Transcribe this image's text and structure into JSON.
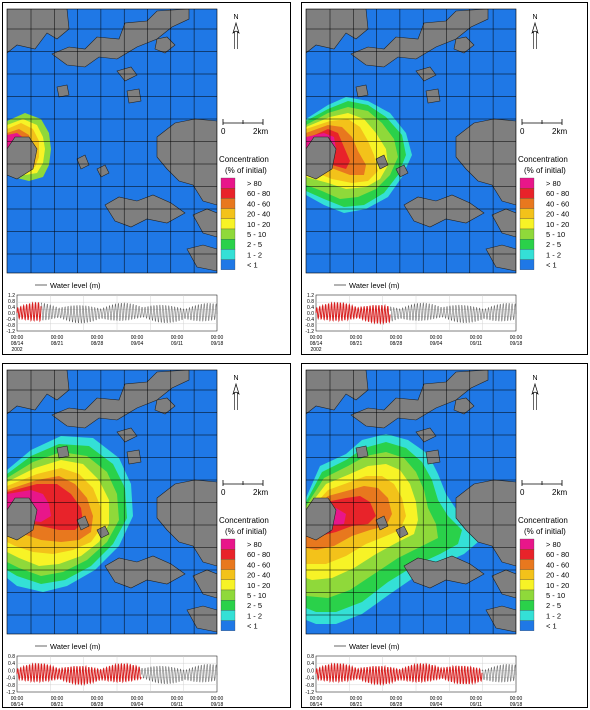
{
  "colors": {
    "sea": "#1f78e6",
    "land": "#7f7f7f",
    "grid": "#000000",
    "bands": [
      "#e8168a",
      "#e8232a",
      "#e8781e",
      "#f3c21a",
      "#f7f326",
      "#8fd93a",
      "#2ad14a",
      "#34e0d6",
      "#1f78e6"
    ],
    "series_past": "#d81e1e",
    "series_future": "#555555"
  },
  "legend": {
    "title_line1": "Concentration",
    "title_line2": "(% of initial)",
    "items": [
      "> 80",
      "60 - 80",
      "40 - 60",
      "20 - 40",
      "10 - 20",
      "5 - 10",
      "2 - 5",
      "1 - 2",
      "< 1"
    ]
  },
  "compass_label": "N",
  "scale": {
    "zero": "0",
    "end": "2km"
  },
  "water_level": {
    "title": "Water level (m)",
    "yticks": [
      "0.8",
      "0.4",
      "0.0",
      "-0.4",
      "-0.8",
      "-1.2"
    ],
    "yticks_short": [
      "1.2",
      "0.8",
      "0.4",
      "0.0",
      "-0.4",
      "-0.8",
      "-1.2"
    ],
    "xticks": [
      {
        "time": "00:00",
        "date": "08/14"
      },
      {
        "time": "00:00",
        "date": "08/21"
      },
      {
        "time": "00:00",
        "date": "08/28"
      },
      {
        "time": "00:00",
        "date": "09/04"
      },
      {
        "time": "00:00",
        "date": "09/11"
      },
      {
        "time": "00:00",
        "date": "09/18"
      }
    ],
    "year": "2002"
  },
  "panels": [
    {
      "name": "panel-1",
      "progress": 0.12
    },
    {
      "name": "panel-2",
      "progress": 0.37
    },
    {
      "name": "panel-3",
      "progress": 0.62
    },
    {
      "name": "panel-4",
      "progress": 0.83
    }
  ]
}
